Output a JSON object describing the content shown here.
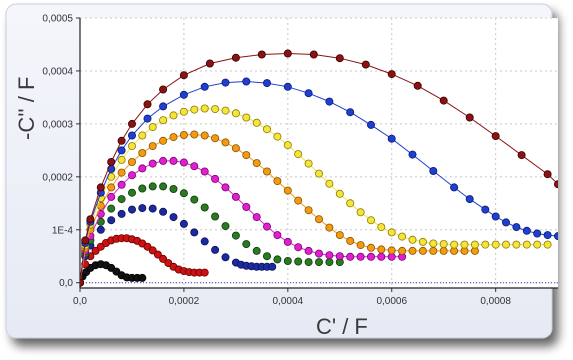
{
  "chart_data": {
    "type": "scatter",
    "xlabel": "C' / F",
    "ylabel": "-C'' / F",
    "xlim": [
      0,
      0.00092
    ],
    "ylim": [
      -1e-05,
      0.0005
    ],
    "x_ticks": [
      "0,0",
      "0,0002",
      "0,0004",
      "0,0006",
      "0,0008"
    ],
    "x_tick_values": [
      0,
      0.0002,
      0.0004,
      0.0006,
      0.0008
    ],
    "y_ticks": [
      "0,0",
      "1E-4",
      "0,0002",
      "0,0003",
      "0,0004",
      "0,0005"
    ],
    "y_tick_values": [
      0,
      0.0001,
      0.0002,
      0.0003,
      0.0004,
      0.0005
    ],
    "grid": true,
    "series": [
      {
        "color": "#111111",
        "edge": "#000000",
        "line": false,
        "x": [
          0.0,
          5e-06,
          1.2e-05,
          2e-05,
          3e-05,
          4e-05,
          5e-05,
          6e-05,
          7e-05,
          8e-05,
          9e-05,
          0.0001,
          0.00011,
          0.00012
        ],
        "y": [
          0.0,
          1.2e-05,
          2e-05,
          2.8e-05,
          3.3e-05,
          3.5e-05,
          3.3e-05,
          2.8e-05,
          2.1e-05,
          1.4e-05,
          1e-05,
          9e-06,
          9e-06,
          9e-06
        ]
      },
      {
        "color": "#cc1111",
        "edge": "#660000",
        "line": false,
        "x": [
          0.0,
          1e-05,
          2e-05,
          3e-05,
          4e-05,
          5e-05,
          6e-05,
          7e-05,
          8e-05,
          9e-05,
          0.0001,
          0.00011,
          0.00012,
          0.00013,
          0.00014,
          0.00015,
          0.00016,
          0.00017,
          0.00018,
          0.00019,
          0.0002,
          0.00021,
          0.00022,
          0.00023,
          0.00024
        ],
        "y": [
          0.0,
          3.5e-05,
          5e-05,
          6e-05,
          6.8e-05,
          7.5e-05,
          8e-05,
          8.3e-05,
          8.4e-05,
          8.4e-05,
          8.2e-05,
          7.9e-05,
          7.4e-05,
          6.8e-05,
          6.1e-05,
          5.3e-05,
          4.5e-05,
          3.7e-05,
          3e-05,
          2.5e-05,
          2.2e-05,
          2e-05,
          1.9e-05,
          1.9e-05,
          1.9e-05
        ]
      },
      {
        "color": "#1c2b9c",
        "edge": "#0a1160",
        "line": false,
        "x": [
          0.0,
          1e-05,
          2e-05,
          4e-05,
          6e-05,
          8e-05,
          0.0001,
          0.00012,
          0.00014,
          0.00016,
          0.00018,
          0.0002,
          0.00022,
          0.00024,
          0.00026,
          0.00028,
          0.0003,
          0.00031,
          0.00032,
          0.00033,
          0.00034,
          0.00035,
          0.00036,
          0.00037
        ],
        "y": [
          0.0,
          5e-05,
          7e-05,
          0.0001,
          0.000118,
          0.00013,
          0.000138,
          0.000141,
          0.00014,
          0.000134,
          0.000124,
          0.000111,
          9.5e-05,
          7.8e-05,
          6.2e-05,
          4.8e-05,
          3.8e-05,
          3.4e-05,
          3.2e-05,
          3.1e-05,
          3e-05,
          3e-05,
          3e-05,
          3e-05
        ]
      },
      {
        "color": "#2a7a22",
        "edge": "#0e3a0a",
        "line": false,
        "x": [
          0.0,
          1e-05,
          2e-05,
          4e-05,
          6e-05,
          8e-05,
          0.0001,
          0.00012,
          0.00014,
          0.00016,
          0.00018,
          0.0002,
          0.00022,
          0.00024,
          0.00026,
          0.00028,
          0.0003,
          0.00032,
          0.00034,
          0.00036,
          0.00038,
          0.0004,
          0.00042,
          0.00044,
          0.00046,
          0.00048,
          0.0005
        ],
        "y": [
          0.0,
          5.5e-05,
          8e-05,
          0.000115,
          0.00014,
          0.000158,
          0.00017,
          0.000178,
          0.000182,
          0.000182,
          0.000177,
          0.000169,
          0.000157,
          0.000142,
          0.000125,
          0.000107,
          8.9e-05,
          7.3e-05,
          6e-05,
          5e-05,
          4.4e-05,
          4.1e-05,
          4e-05,
          3.9e-05,
          3.9e-05,
          3.9e-05,
          3.9e-05
        ]
      },
      {
        "color": "#e020d0",
        "edge": "#7a0070",
        "line": true,
        "x": [
          0.0,
          1e-05,
          2e-05,
          4e-05,
          6e-05,
          8e-05,
          0.0001,
          0.00012,
          0.00014,
          0.00016,
          0.00018,
          0.0002,
          0.00022,
          0.00024,
          0.00026,
          0.00028,
          0.0003,
          0.00032,
          0.00034,
          0.00036,
          0.00038,
          0.0004,
          0.00042,
          0.00044,
          0.00046,
          0.00048,
          0.0005,
          0.00052,
          0.00054,
          0.00056,
          0.00058,
          0.0006,
          0.00062
        ],
        "y": [
          0.0,
          6e-05,
          8.8e-05,
          0.00013,
          0.000162,
          0.000185,
          0.000203,
          0.000216,
          0.000225,
          0.00023,
          0.00023,
          0.000227,
          0.00022,
          0.00021,
          0.000196,
          0.00018,
          0.000162,
          0.000143,
          0.000124,
          0.000106,
          9e-05,
          7.7e-05,
          6.7e-05,
          6e-05,
          5.5e-05,
          5.2e-05,
          5e-05,
          4.9e-05,
          4.9e-05,
          4.9e-05,
          4.9e-05,
          4.9e-05,
          4.9e-05
        ]
      },
      {
        "color": "#f29b10",
        "edge": "#8a5200",
        "line": true,
        "x": [
          0.0,
          1e-05,
          2e-05,
          4e-05,
          6e-05,
          8e-05,
          0.0001,
          0.00012,
          0.00014,
          0.00016,
          0.00018,
          0.0002,
          0.00022,
          0.00024,
          0.00026,
          0.00028,
          0.0003,
          0.00032,
          0.00034,
          0.00036,
          0.00038,
          0.0004,
          0.00042,
          0.00044,
          0.00046,
          0.00048,
          0.0005,
          0.00052,
          0.00054,
          0.00056,
          0.00058,
          0.0006,
          0.00062,
          0.00064,
          0.00066,
          0.00068,
          0.0007,
          0.00072,
          0.00074,
          0.00076
        ],
        "y": [
          0.0,
          6.5e-05,
          0.0001,
          0.000145,
          0.00018,
          0.000208,
          0.000228,
          0.000245,
          0.000258,
          0.000268,
          0.000275,
          0.000279,
          0.00028,
          0.000278,
          0.000273,
          0.000265,
          0.000254,
          0.000241,
          0.000226,
          0.00021,
          0.000192,
          0.000174,
          0.000155,
          0.000137,
          0.00012,
          0.000104,
          9e-05,
          7.9e-05,
          7.1e-05,
          6.6e-05,
          6.3e-05,
          6.1e-05,
          6e-05,
          6e-05,
          6e-05,
          6e-05,
          6e-05,
          6e-05,
          6e-05,
          6e-05
        ]
      },
      {
        "color": "#f5e43a",
        "edge": "#8a7a00",
        "line": true,
        "x": [
          0.0,
          1e-05,
          2e-05,
          4e-05,
          6e-05,
          8e-05,
          0.0001,
          0.00012,
          0.00014,
          0.00016,
          0.00018,
          0.0002,
          0.00022,
          0.00024,
          0.00026,
          0.00028,
          0.0003,
          0.00032,
          0.00034,
          0.00036,
          0.00038,
          0.0004,
          0.00042,
          0.00044,
          0.00046,
          0.00048,
          0.0005,
          0.00052,
          0.00054,
          0.00056,
          0.00058,
          0.0006,
          0.00062,
          0.00064,
          0.00066,
          0.00068,
          0.0007,
          0.00072,
          0.00074,
          0.00076,
          0.00078,
          0.0008,
          0.00082,
          0.00084,
          0.00086,
          0.00088,
          0.0009
        ],
        "y": [
          0.0,
          7e-05,
          0.00011,
          0.00016,
          0.0002,
          0.000232,
          0.000258,
          0.000278,
          0.000294,
          0.000307,
          0.000316,
          0.000323,
          0.000327,
          0.000329,
          0.000328,
          0.000325,
          0.00032,
          0.000312,
          0.000302,
          0.00029,
          0.000276,
          0.00026,
          0.000243,
          0.000225,
          0.000206,
          0.000187,
          0.000168,
          0.00015,
          0.000133,
          0.000118,
          0.000105,
          9.5e-05,
          8.7e-05,
          8.1e-05,
          7.7e-05,
          7.4e-05,
          7.3e-05,
          7.2e-05,
          7.2e-05,
          7.2e-05,
          7.2e-05,
          7.2e-05,
          7.2e-05,
          7.2e-05,
          7.2e-05,
          7.2e-05,
          7.2e-05
        ]
      },
      {
        "color": "#1f3fd0",
        "edge": "#0a1a70",
        "line": true,
        "x": [
          0.0,
          1e-05,
          2e-05,
          4e-05,
          6e-05,
          8e-05,
          0.0001,
          0.00013,
          0.00016,
          0.0002,
          0.00024,
          0.00028,
          0.00032,
          0.00036,
          0.0004,
          0.00044,
          0.00048,
          0.00052,
          0.00056,
          0.0006,
          0.00064,
          0.00068,
          0.00072,
          0.00075,
          0.00078,
          0.0008,
          0.00082,
          0.00084,
          0.00086,
          0.00088,
          0.0009,
          0.00092
        ],
        "y": [
          0.0,
          7.5e-05,
          0.000115,
          0.00017,
          0.000215,
          0.00025,
          0.000278,
          0.00031,
          0.000333,
          0.000355,
          0.00037,
          0.000378,
          0.00038,
          0.000377,
          0.00037,
          0.000358,
          0.000342,
          0.000322,
          0.000298,
          0.000272,
          0.000242,
          0.000211,
          0.00018,
          0.000158,
          0.000138,
          0.000125,
          0.000114,
          0.000105,
          9.8e-05,
          9.3e-05,
          9e-05,
          8.8e-05
        ]
      },
      {
        "color": "#8a1212",
        "edge": "#3a0000",
        "line": true,
        "x": [
          0.0,
          1e-05,
          2e-05,
          4e-05,
          6e-05,
          8e-05,
          0.0001,
          0.00013,
          0.00016,
          0.0002,
          0.00025,
          0.0003,
          0.00035,
          0.0004,
          0.00045,
          0.0005,
          0.00055,
          0.0006,
          0.00065,
          0.0007,
          0.00075,
          0.0008,
          0.00085,
          0.0009,
          0.00092
        ],
        "y": [
          0.0,
          8e-05,
          0.00012,
          0.00018,
          0.000228,
          0.000268,
          0.0003,
          0.000337,
          0.000365,
          0.000392,
          0.000414,
          0.000425,
          0.000431,
          0.000433,
          0.000431,
          0.000424,
          0.000412,
          0.000394,
          0.000372,
          0.000344,
          0.000312,
          0.000277,
          0.000241,
          0.000205,
          0.000186
        ]
      }
    ]
  }
}
